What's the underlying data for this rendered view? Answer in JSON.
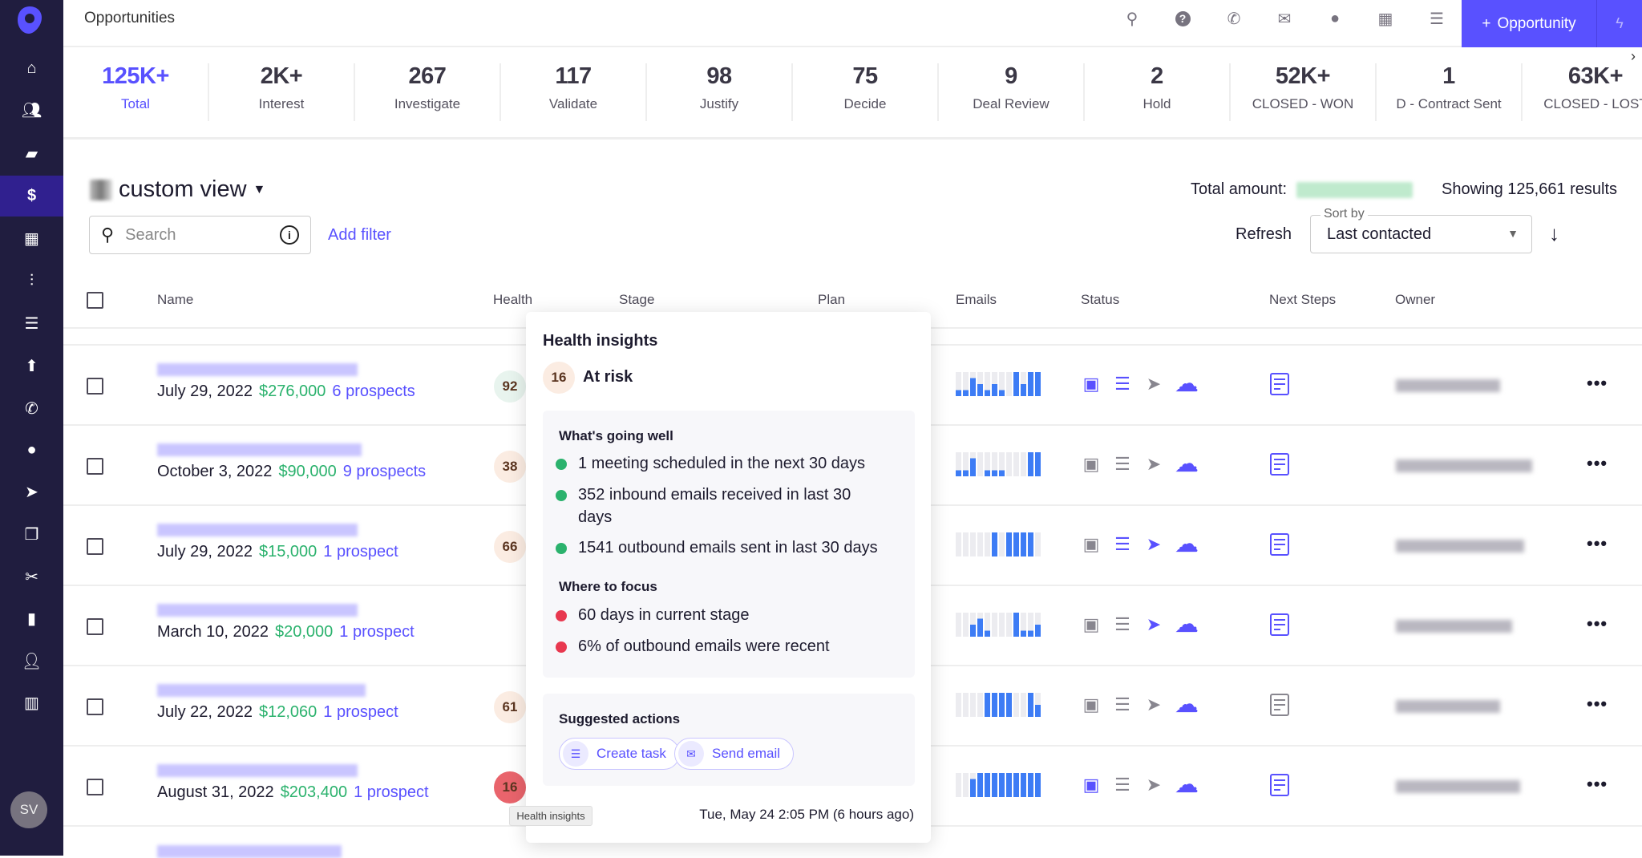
{
  "app": {
    "page_title": "Opportunities",
    "new_button": "Opportunity",
    "avatar_initials": "SV"
  },
  "colors": {
    "brand": "#5951ff",
    "sidebar": "#201d3f",
    "amount": "#2bb26d",
    "good": "#2bb26d",
    "bad": "#e8384f"
  },
  "sidebar": {
    "items": [
      "home-icon",
      "people-icon",
      "briefcase-icon",
      "dollar-icon",
      "calendar-icon",
      "waveform-icon",
      "tasks-icon",
      "upload-icon",
      "phone-icon",
      "chat-icon",
      "send-icon",
      "copy-icon",
      "scissors-icon",
      "bar-chart-icon",
      "person-icon",
      "map-icon"
    ],
    "active": "dollar-icon"
  },
  "topbar": {
    "icons": [
      "search-icon",
      "help-icon",
      "phone-icon",
      "mail-icon",
      "chat-icon",
      "calendar-icon",
      "tasks-icon"
    ]
  },
  "stats": [
    {
      "value": "125K+",
      "label": "Total"
    },
    {
      "value": "2K+",
      "label": "Interest"
    },
    {
      "value": "267",
      "label": "Investigate"
    },
    {
      "value": "117",
      "label": "Validate"
    },
    {
      "value": "98",
      "label": "Justify"
    },
    {
      "value": "75",
      "label": "Decide"
    },
    {
      "value": "9",
      "label": "Deal Review"
    },
    {
      "value": "2",
      "label": "Hold"
    },
    {
      "value": "52K+",
      "label": "CLOSED - WON"
    },
    {
      "value": "1",
      "label": "D - Contract Sent"
    },
    {
      "value": "63K+",
      "label": "CLOSED - LOST"
    }
  ],
  "view": {
    "title": "custom view",
    "search_placeholder": "Search",
    "add_filter": "Add filter",
    "total_amount_label": "Total amount:",
    "showing": "Showing 125,661 results",
    "refresh": "Refresh",
    "sort_label": "Sort by",
    "sort_value": "Last contacted"
  },
  "columns": [
    "Name",
    "Health",
    "Stage",
    "Plan",
    "Emails",
    "Status",
    "Next Steps",
    "Owner"
  ],
  "rows": [
    {
      "date": "July 29, 2022",
      "amount": "$276,000",
      "prospects": "6 prospects",
      "health": "92",
      "health_level": "good",
      "emails": [
        1,
        1,
        3,
        2,
        1,
        2,
        1,
        0,
        4,
        2,
        4,
        4
      ],
      "status": [
        true,
        true,
        false,
        true
      ],
      "next_steps": true
    },
    {
      "date": "October 3, 2022",
      "amount": "$90,000",
      "prospects": "9 prospects",
      "health": "38",
      "health_level": "mid",
      "emails": [
        1,
        1,
        3,
        0,
        1,
        1,
        1,
        0,
        0,
        0,
        4,
        4
      ],
      "status": [
        false,
        false,
        false,
        true
      ],
      "next_steps": true
    },
    {
      "date": "July 29, 2022",
      "amount": "$15,000",
      "prospects": "1 prospect",
      "health": "66",
      "health_level": "mid",
      "emails": [
        0,
        0,
        0,
        0,
        0,
        4,
        0,
        4,
        4,
        4,
        4,
        0
      ],
      "status": [
        false,
        true,
        true,
        true
      ],
      "next_steps": true
    },
    {
      "date": "March 10, 2022",
      "amount": "$20,000",
      "prospects": "1 prospect",
      "health": "",
      "health_level": "none",
      "emails": [
        0,
        0,
        2,
        3,
        1,
        0,
        0,
        0,
        4,
        1,
        1,
        2
      ],
      "status": [
        false,
        false,
        true,
        true
      ],
      "next_steps": true
    },
    {
      "date": "July 22, 2022",
      "amount": "$12,060",
      "prospects": "1 prospect",
      "health": "61",
      "health_level": "mid",
      "emails": [
        0,
        0,
        0,
        0,
        4,
        4,
        4,
        4,
        0,
        0,
        4,
        2
      ],
      "status": [
        false,
        false,
        false,
        true
      ],
      "next_steps": false
    },
    {
      "date": "August 31, 2022",
      "amount": "$203,400",
      "prospects": "1 prospect",
      "health": "16",
      "health_level": "bad",
      "emails": [
        0,
        0,
        3,
        4,
        4,
        4,
        4,
        4,
        4,
        4,
        4,
        4
      ],
      "status": [
        true,
        false,
        false,
        true
      ],
      "next_steps": true
    }
  ],
  "popup": {
    "title": "Health insights",
    "score": "16",
    "status": "At risk",
    "going_well_title": "What's going well",
    "going_well": [
      "1 meeting scheduled in the next 30 days",
      "352 inbound emails received in last 30 days",
      "1541 outbound emails sent in last 30 days"
    ],
    "focus_title": "Where to focus",
    "focus": [
      "60 days in current stage",
      "6% of outbound emails were recent"
    ],
    "actions_title": "Suggested actions",
    "create_task": "Create task",
    "send_email": "Send email",
    "timestamp": "Tue, May 24 2:05 PM (6 hours ago)"
  },
  "tooltip": "Health insights"
}
